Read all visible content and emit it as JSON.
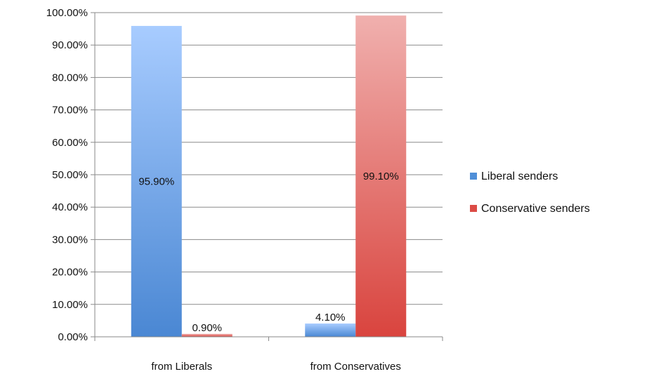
{
  "chart_data": {
    "type": "bar",
    "categories": [
      "from Liberals",
      "from Conservatives"
    ],
    "series": [
      {
        "name": "Liberal senders",
        "values": [
          95.9,
          4.1
        ],
        "labels": [
          "95.90%",
          "4.10%"
        ],
        "color": "#4f8fd8"
      },
      {
        "name": "Conservative senders",
        "values": [
          0.9,
          99.1
        ],
        "labels": [
          "0.90%",
          "99.10%"
        ],
        "color": "#dc4b45"
      }
    ],
    "ylim": [
      0,
      100
    ],
    "yticks": [
      0,
      10,
      20,
      30,
      40,
      50,
      60,
      70,
      80,
      90,
      100
    ],
    "ytick_labels": [
      "0.00%",
      "10.00%",
      "20.00%",
      "30.00%",
      "40.00%",
      "50.00%",
      "60.00%",
      "70.00%",
      "80.00%",
      "90.00%",
      "100.00%"
    ],
    "grid": true,
    "legend": "right",
    "title": "",
    "xlabel": "",
    "ylabel": ""
  }
}
